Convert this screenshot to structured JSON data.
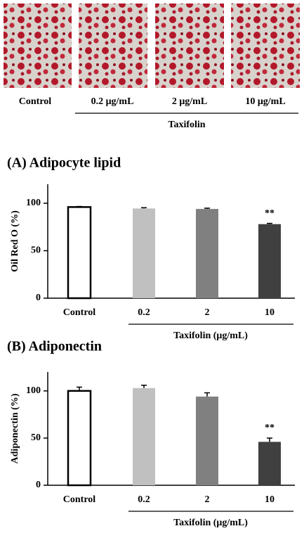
{
  "micrographs": {
    "labels": [
      "Control",
      "0.2 μg/mL",
      "2 μg/mL",
      "10 μg/mL"
    ],
    "group_label": "Taxifolin"
  },
  "chart_data": [
    {
      "type": "bar",
      "title": "(A) Adipocyte lipid",
      "y_label": "Oil Red O (%)",
      "x_label": "Taxifolin (μg/mL)",
      "categories": [
        "Control",
        "0.2",
        "2",
        "10"
      ],
      "values": [
        96,
        94.5,
        94,
        78
      ],
      "errors": [
        0.6,
        0.8,
        0.8,
        0.8
      ],
      "colors": [
        "#ffffff",
        "#c0c0c0",
        "#808080",
        "#404040"
      ],
      "value_annotations": [
        null,
        null,
        null,
        "**"
      ],
      "ylim": [
        0,
        120
      ],
      "yticks": [
        0,
        50,
        100
      ]
    },
    {
      "type": "bar",
      "title": "(B) Adiponectin",
      "y_label": "Adiponectin (%)",
      "x_label": "Taxifolin (μg/mL)",
      "categories": [
        "Control",
        "0.2",
        "2",
        "10"
      ],
      "values": [
        100,
        103,
        94,
        46
      ],
      "errors": [
        4,
        3,
        4,
        4
      ],
      "colors": [
        "#ffffff",
        "#c0c0c0",
        "#808080",
        "#404040"
      ],
      "value_annotations": [
        null,
        null,
        null,
        "**"
      ],
      "ylim": [
        0,
        120
      ],
      "yticks": [
        0,
        50,
        100
      ]
    }
  ]
}
